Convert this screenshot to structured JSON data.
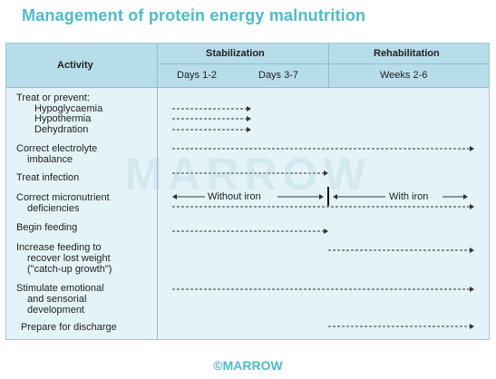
{
  "title": "Management of protein energy malnutrition",
  "header": {
    "activity": "Activity",
    "stabilization": "Stabilization",
    "rehabilitation": "Rehabilitation",
    "days_1_2": "Days 1-2",
    "days_3_7": "Days 3-7",
    "weeks_2_6": "Weeks 2-6"
  },
  "activities": [
    {
      "lines": [
        "Treat or prevent:"
      ]
    },
    {
      "lines": [
        "Hypoglycaemia"
      ],
      "indent": true
    },
    {
      "lines": [
        "Hypothermia"
      ],
      "indent": true
    },
    {
      "lines": [
        "Dehydration"
      ],
      "indent": true
    },
    {
      "lines": [
        "Correct electrolyte",
        "imbalance"
      ]
    },
    {
      "lines": [
        "Treat infection"
      ]
    },
    {
      "lines": [
        "Correct micronutrient",
        "deficiencies"
      ]
    },
    {
      "lines": [
        "Begin feeding"
      ]
    },
    {
      "lines": [
        "Increase feeding to",
        "recover lost weight",
        "(\"catch-up growth\")"
      ]
    },
    {
      "lines": [
        "Stimulate emotional",
        "and sensorial",
        "development"
      ]
    },
    {
      "lines": [
        "Prepare for discharge"
      ]
    }
  ],
  "micronutrient_labels": {
    "without_iron": "Without iron",
    "with_iron": "With iron"
  },
  "watermark": "MARROW",
  "footer": "©MARROW",
  "colors": {
    "title": "#4bbccc",
    "header_bg": "#b6dde9",
    "panel_bg": "#e4f3f8",
    "arrow": "#333333"
  }
}
